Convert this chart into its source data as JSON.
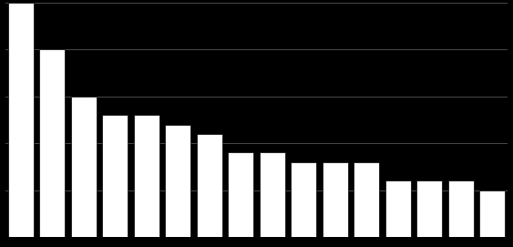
{
  "values": [
    25,
    20,
    15,
    13,
    13,
    12,
    11,
    9,
    9,
    8,
    8,
    8,
    6,
    6,
    6,
    5
  ],
  "bar_color": "#ffffff",
  "bar_edge_color": "#000000",
  "background_color": "#000000",
  "grid_color": "#666666",
  "ylim": [
    0,
    25
  ],
  "yticks": [
    5,
    10,
    15,
    20,
    25
  ],
  "bar_width": 0.82,
  "figsize": [
    5.63,
    2.71
  ],
  "dpi": 100
}
